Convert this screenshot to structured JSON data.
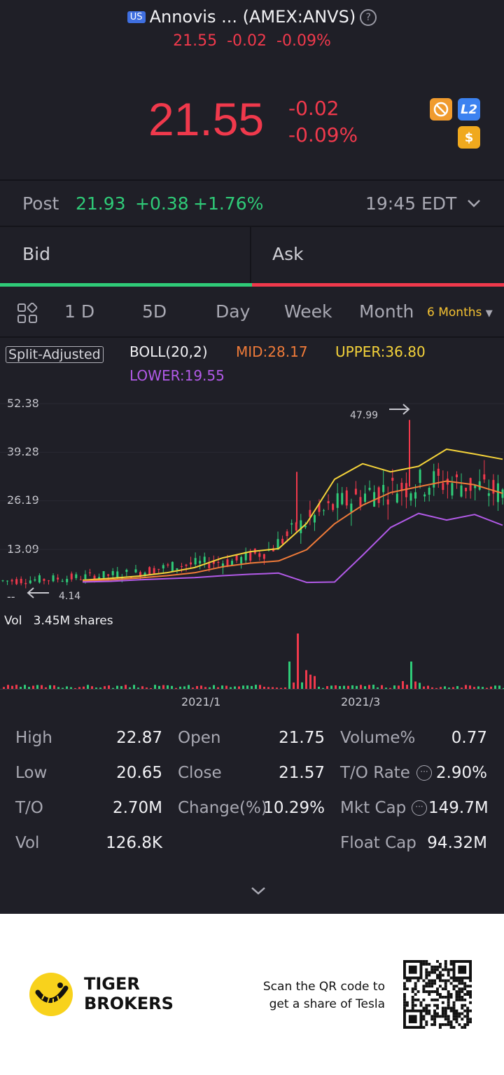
{
  "header": {
    "market_badge": "US",
    "title": "Annovis ... (AMEX:ANVS)",
    "help_icon": "?",
    "sub_price": "21.55",
    "sub_change": "-0.02",
    "sub_pct": "-0.09%"
  },
  "quote": {
    "price": "21.55",
    "change": "-0.02",
    "pct": "-0.09%",
    "tag_l2": "L2",
    "tag_dollar": "$"
  },
  "post": {
    "label": "Post",
    "price": "21.93",
    "change": "+0.38",
    "pct": "+1.76%",
    "time": "19:45 EDT"
  },
  "bidask": {
    "bid": "Bid",
    "ask": "Ask"
  },
  "tabs": [
    "1 D",
    "5D",
    "Day",
    "Week",
    "Month",
    "6 Months"
  ],
  "legend": {
    "split": "Split-Adjusted",
    "boll": "BOLL(20,2)",
    "mid": "MID:28.17",
    "upper": "UPPER:36.80",
    "lower": "LOWER:19.55"
  },
  "chart_data": {
    "type": "line",
    "title": "",
    "y_ticks": [
      "52.38",
      "39.28",
      "26.19",
      "13.09",
      "--"
    ],
    "ylim": [
      0,
      52.38
    ],
    "x_ticks": [
      "2021/1",
      "2021/3"
    ],
    "max_label": "47.99",
    "min_label": "4.14",
    "volume_label": "Vol",
    "volume_value": "3.45M shares",
    "series": [
      {
        "name": "UPPER",
        "color": "#f5d33a",
        "values": [
          4.8,
          5.3,
          5.9,
          6.8,
          8.2,
          10.8,
          12.5,
          13.3,
          20.1,
          32.0,
          36.2,
          34.0,
          35.5,
          40.1,
          38.8,
          37.4
        ]
      },
      {
        "name": "MID",
        "color": "#f07b39",
        "values": [
          4.6,
          4.9,
          5.4,
          6.0,
          6.8,
          8.4,
          9.4,
          10.0,
          13.0,
          20.0,
          25.0,
          28.4,
          30.0,
          31.5,
          30.5,
          28.2
        ]
      },
      {
        "name": "LOWER",
        "color": "#b25ae8",
        "values": [
          4.3,
          4.5,
          4.9,
          5.2,
          5.5,
          6.0,
          6.4,
          6.7,
          4.2,
          4.3,
          11.5,
          19.0,
          22.8,
          21.0,
          22.5,
          19.6
        ]
      }
    ]
  },
  "stats": {
    "rows": [
      [
        [
          "High",
          "22.87"
        ],
        [
          "Open",
          "21.75"
        ],
        [
          "Volume%",
          "0.77"
        ]
      ],
      [
        [
          "Low",
          "20.65"
        ],
        [
          "Close",
          "21.57"
        ],
        [
          "T/O Rate",
          "2.90%"
        ]
      ],
      [
        [
          "T/O",
          "2.70M"
        ],
        [
          "Change(%)",
          "10.29%"
        ],
        [
          "Mkt Cap",
          "149.7M"
        ]
      ],
      [
        [
          "Vol",
          "126.8K"
        ],
        [
          "",
          ""
        ],
        [
          "Float Cap",
          "94.32M"
        ]
      ]
    ]
  },
  "footer": {
    "brand_line1": "TIGER",
    "brand_line2": "BROKERS",
    "qr_line1": "Scan the QR code to",
    "qr_line2": "get a share of Tesla"
  }
}
